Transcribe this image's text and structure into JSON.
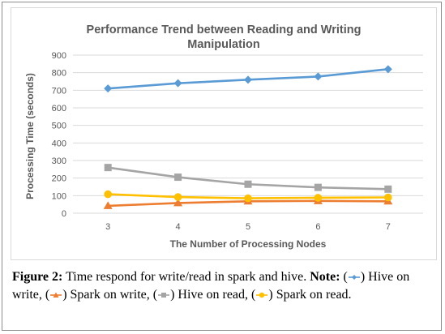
{
  "chart_data": {
    "type": "line",
    "title": "Performance Trend between Reading and Writing Manipulation",
    "title_lines": [
      "Performance Trend between Reading and Writing",
      "Manipulation"
    ],
    "xlabel": "The Number of Processing Nodes",
    "ylabel": "Processing Time (seconds)",
    "x": [
      3,
      4,
      5,
      6,
      7
    ],
    "ylim": [
      0,
      900
    ],
    "yticks": [
      0,
      100,
      200,
      300,
      400,
      500,
      600,
      700,
      800,
      900
    ],
    "grid": true,
    "series": [
      {
        "name": "Hive on write",
        "values": [
          710,
          740,
          760,
          778,
          820
        ],
        "color": "#5b9bd5",
        "marker": "diamond"
      },
      {
        "name": "Spark on write",
        "values": [
          42,
          58,
          68,
          70,
          68
        ],
        "color": "#ed7d31",
        "marker": "triangle"
      },
      {
        "name": "Hive on read",
        "values": [
          260,
          205,
          165,
          147,
          137
        ],
        "color": "#a5a5a5",
        "marker": "square"
      },
      {
        "name": "Spark on read",
        "values": [
          108,
          92,
          85,
          88,
          90
        ],
        "color": "#ffc000",
        "marker": "circle"
      }
    ]
  },
  "caption": {
    "figure_label": "Figure 2:",
    "text": "Time respond for write/read in spark and hive.",
    "note_label": "Note:",
    "legend_items": [
      "Hive on write,",
      "Spark on write,",
      "Hive on read,",
      "Spark on read."
    ]
  }
}
